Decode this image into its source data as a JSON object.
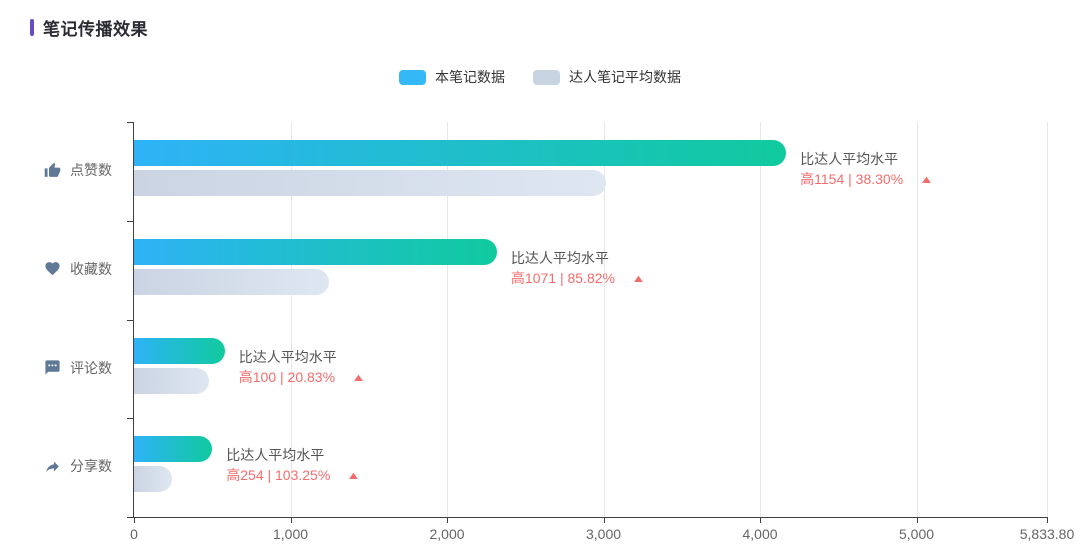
{
  "page": {
    "title": "笔记传播效果"
  },
  "colors": {
    "accent": "#6a4bc4",
    "axis": "#404040",
    "gridline": "#e7e7e7",
    "category_icon": "#5e7896",
    "category_text": "#666666",
    "annotation_text": "#555555",
    "annotation_red": "#f56c6c"
  },
  "legend": {
    "items": [
      {
        "label": "本笔记数据",
        "color": "#34b9f6"
      },
      {
        "label": "达人笔记平均数据",
        "color": "#c9d4e2"
      }
    ]
  },
  "chart_data": {
    "type": "bar",
    "orientation": "horizontal",
    "title": "笔记传播效果",
    "grid": true,
    "legend_position": "top-center",
    "xlim": [
      0,
      5833.8
    ],
    "x_ticks": [
      {
        "value": 0,
        "label": "0"
      },
      {
        "value": 1000,
        "label": "1,000"
      },
      {
        "value": 2000,
        "label": "2,000"
      },
      {
        "value": 3000,
        "label": "3,000"
      },
      {
        "value": 4000,
        "label": "4,000"
      },
      {
        "value": 5000,
        "label": "5,000"
      },
      {
        "value": 5833.8,
        "label": "5,833.80"
      }
    ],
    "categories": [
      "点赞数",
      "收藏数",
      "评论数",
      "分享数"
    ],
    "category_icons": [
      "thumbs-up-icon",
      "heart-icon",
      "comment-icon",
      "share-icon"
    ],
    "series": [
      {
        "name": "本笔记数据",
        "values": [
          4167,
          2319,
          580,
          500
        ],
        "gradient": [
          "#2eb3f7",
          "#10ca9e"
        ]
      },
      {
        "name": "达人笔记平均数据",
        "values": [
          3013,
          1248,
          480,
          246
        ],
        "gradient": [
          "#cad4e3",
          "#dee7f1"
        ]
      }
    ],
    "annotations": [
      {
        "line1": "比达人平均水平",
        "line2": "高1154 | 38.30%",
        "arrow": "up"
      },
      {
        "line1": "比达人平均水平",
        "line2": "高1071 | 85.82%",
        "arrow": "up"
      },
      {
        "line1": "比达人平均水平",
        "line2": "高100 | 20.83%",
        "arrow": "up"
      },
      {
        "line1": "比达人平均水平",
        "line2": "高254 | 103.25%",
        "arrow": "up"
      }
    ]
  }
}
